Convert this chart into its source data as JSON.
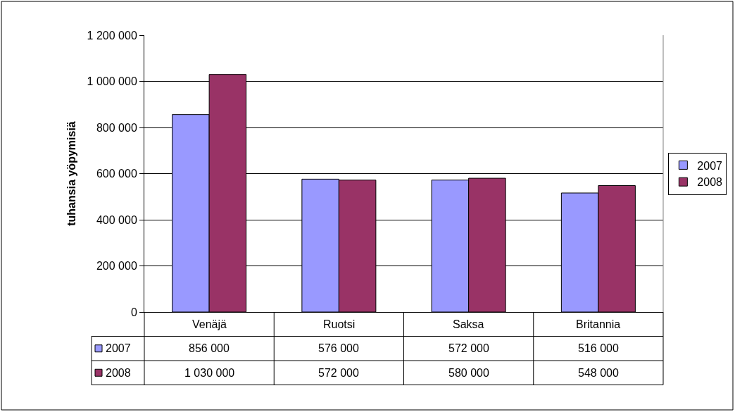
{
  "chart_data": {
    "type": "bar",
    "ylabel": "tuhansia yöpymisiä",
    "categories": [
      "Venäjä",
      "Ruotsi",
      "Saksa",
      "Britannia"
    ],
    "series": [
      {
        "name": "2007",
        "color": "#9999ff",
        "values": [
          856000,
          576000,
          572000,
          516000
        ],
        "value_labels": [
          "856 000",
          "576 000",
          "572 000",
          "516 000"
        ]
      },
      {
        "name": "2008",
        "color": "#993366",
        "values": [
          1030000,
          572000,
          580000,
          548000
        ],
        "value_labels": [
          "1 030 000",
          "572 000",
          "580 000",
          "548 000"
        ]
      }
    ],
    "ylim": [
      0,
      1200000
    ],
    "yticks": [
      {
        "value": 0,
        "label": "0"
      },
      {
        "value": 200000,
        "label": "200 000"
      },
      {
        "value": 400000,
        "label": "400 000"
      },
      {
        "value": 600000,
        "label": "600 000"
      },
      {
        "value": 800000,
        "label": "800 000"
      },
      {
        "value": 1000000,
        "label": "1 000 000"
      },
      {
        "value": 1200000,
        "label": "1 200 000"
      }
    ],
    "grid": "y",
    "legend": "right"
  }
}
